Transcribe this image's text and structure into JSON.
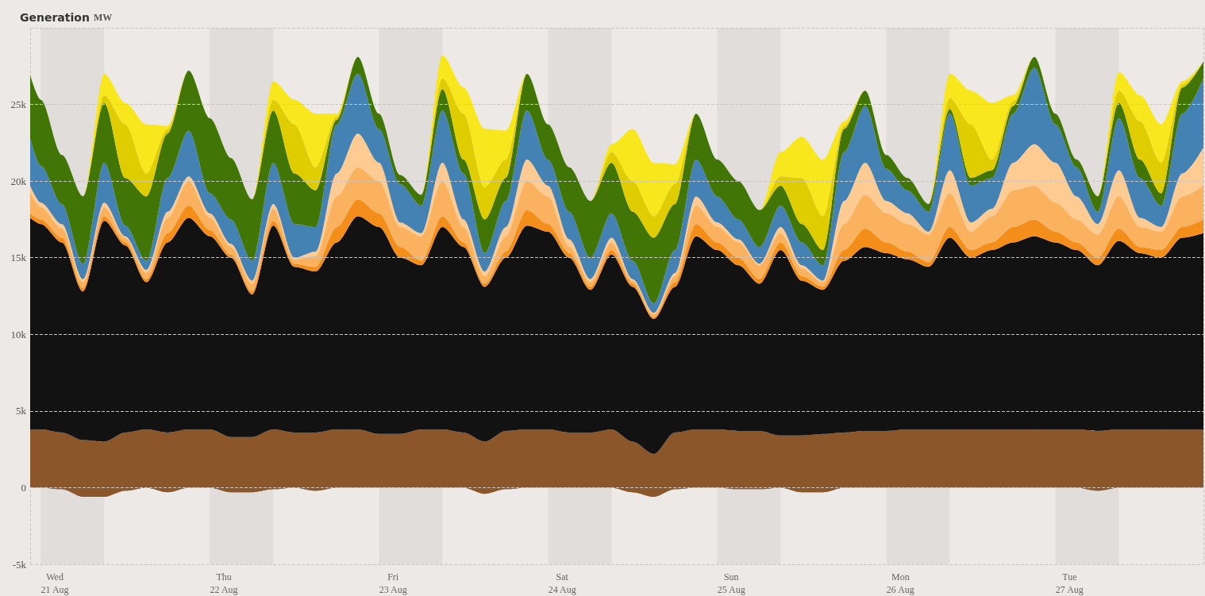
{
  "chart_data": {
    "type": "area",
    "stacked": true,
    "title": "Generation",
    "subtitle": "MW",
    "marker": "none",
    "grid": true,
    "xlim": [
      "--08-20T20:30",
      "--08-27T19:00"
    ],
    "xticks": [
      {
        "value": "--08-21",
        "label": "Wed\n21 Aug"
      },
      {
        "value": "--08-22",
        "label": "Thu\n22 Aug"
      },
      {
        "value": "--08-23",
        "label": "Fri\n23 Aug"
      },
      {
        "value": "--08-24",
        "label": "Sat\n24 Aug"
      },
      {
        "value": "--08-25",
        "label": "Sun\n25 Aug"
      },
      {
        "value": "--08-26",
        "label": "Mon\n26 Aug"
      },
      {
        "value": "--08-27",
        "label": "Tue\n27 Aug"
      }
    ],
    "ylim": [
      -5000,
      30000
    ],
    "yticks": [
      {
        "value": -5000,
        "label": "-5k"
      },
      {
        "value": 0,
        "label": "0"
      },
      {
        "value": 5000,
        "label": "5k"
      },
      {
        "value": 10000,
        "label": "10k"
      },
      {
        "value": 15000,
        "label": "15k"
      },
      {
        "value": 20000,
        "label": "20k"
      },
      {
        "value": 25000,
        "label": "25k"
      },
      {
        "value": 30000,
        "label": null
      }
    ],
    "bands": [
      {
        "axis": "x",
        "from": "--08-20T22:00",
        "to": "--08-21T07:00",
        "color": "#e0dddb"
      },
      {
        "axis": "x",
        "from": "--08-21T22:00",
        "to": "--08-22T07:00",
        "color": "#e0dddb"
      },
      {
        "axis": "x",
        "from": "--08-22T22:00",
        "to": "--08-23T07:00",
        "color": "#e0dddb"
      },
      {
        "axis": "x",
        "from": "--08-23T22:00",
        "to": "--08-24T07:00",
        "color": "#e0dddb"
      },
      {
        "axis": "x",
        "from": "--08-24T22:00",
        "to": "--08-25T07:00",
        "color": "#e0dddb"
      },
      {
        "axis": "x",
        "from": "--08-25T22:00",
        "to": "--08-26T07:00",
        "color": "#e0dddb"
      },
      {
        "axis": "x",
        "from": "--08-26T22:00",
        "to": "--08-27T07:00",
        "color": "#e0dddb"
      }
    ],
    "x": [
      "--08-20T20:30",
      "--08-20T22:00",
      "--08-21T01:00",
      "--08-21T04:00",
      "--08-21T07:00",
      "--08-21T10:00",
      "--08-21T13:00",
      "--08-21T16:00",
      "--08-21T19:00",
      "--08-21T22:00",
      "--08-22T01:00",
      "--08-22T04:00",
      "--08-22T07:00",
      "--08-22T10:00",
      "--08-22T13:00",
      "--08-22T16:00",
      "--08-22T19:00",
      "--08-22T22:00",
      "--08-23T01:00",
      "--08-23T04:00",
      "--08-23T07:00",
      "--08-23T10:00",
      "--08-23T13:00",
      "--08-23T16:00",
      "--08-23T19:00",
      "--08-23T22:00",
      "--08-24T01:00",
      "--08-24T04:00",
      "--08-24T07:00",
      "--08-24T10:00",
      "--08-24T13:00",
      "--08-24T16:00",
      "--08-24T19:00",
      "--08-24T22:00",
      "--08-25T01:00",
      "--08-25T04:00",
      "--08-25T07:00",
      "--08-25T10:00",
      "--08-25T13:00",
      "--08-25T16:00",
      "--08-25T19:00",
      "--08-25T22:00",
      "--08-26T01:00",
      "--08-26T04:00",
      "--08-26T07:00",
      "--08-26T10:00",
      "--08-26T13:00",
      "--08-26T16:00",
      "--08-26T19:00",
      "--08-26T22:00",
      "--08-27T01:00",
      "--08-27T04:00",
      "--08-27T07:00",
      "--08-27T10:00",
      "--08-27T13:00",
      "--08-27T16:00",
      "--08-27T19:00"
    ],
    "series": [
      {
        "color": "#8b572a",
        "values": [
          0,
          0,
          -100,
          -600,
          -600,
          -200,
          0,
          -300,
          0,
          0,
          -300,
          -300,
          -100,
          0,
          -200,
          0,
          0,
          0,
          0,
          0,
          0,
          0,
          -400,
          -100,
          0,
          0,
          0,
          0,
          0,
          -300,
          -600,
          -100,
          0,
          0,
          -100,
          -100,
          0,
          -300,
          -300,
          0,
          0,
          0,
          0,
          0,
          0,
          0,
          0,
          0,
          0,
          0,
          0,
          -200,
          0,
          0,
          0,
          0,
          0
        ]
      },
      {
        "color": "#8b572a",
        "values": [
          3800,
          3800,
          3700,
          3700,
          3600,
          3800,
          3800,
          3900,
          3800,
          3800,
          3600,
          3600,
          3900,
          3600,
          3800,
          3800,
          3800,
          3500,
          3500,
          3800,
          3800,
          3600,
          3400,
          3800,
          3800,
          3800,
          3600,
          3600,
          3800,
          3300,
          2800,
          3700,
          3800,
          3800,
          3800,
          3800,
          3400,
          3700,
          3800,
          3600,
          3700,
          3700,
          3800,
          3800,
          3800,
          3800,
          3800,
          3800,
          3800,
          3800,
          3800,
          3900,
          3800,
          3800,
          3800,
          3800,
          3800
        ]
      },
      {
        "color": "#121212",
        "values": [
          13800,
          13400,
          12400,
          9700,
          14400,
          12200,
          9600,
          12400,
          13800,
          12600,
          11700,
          9300,
          13300,
          10800,
          10500,
          12200,
          13900,
          13500,
          11500,
          10700,
          13200,
          12100,
          10100,
          11300,
          13300,
          12900,
          11400,
          9300,
          11400,
          10100,
          8800,
          9500,
          12600,
          11700,
          10800,
          9600,
          12100,
          10100,
          9400,
          11200,
          12000,
          11600,
          11100,
          10600,
          12500,
          11200,
          11700,
          12200,
          12600,
          12200,
          11700,
          10800,
          12300,
          11500,
          11200,
          12500,
          12800
        ]
      },
      {
        "color": "#f48e1b",
        "values": [
          300,
          300,
          300,
          200,
          300,
          200,
          200,
          600,
          800,
          400,
          200,
          200,
          300,
          200,
          300,
          1000,
          1100,
          900,
          700,
          300,
          700,
          300,
          200,
          400,
          1000,
          500,
          300,
          200,
          300,
          200,
          100,
          300,
          800,
          500,
          500,
          300,
          500,
          300,
          200,
          700,
          1200,
          700,
          500,
          300,
          700,
          500,
          500,
          1000,
          1100,
          700,
          500,
          500,
          800,
          400,
          500,
          700,
          900
        ]
      },
      {
        "color": "#fbb25e",
        "values": [
          1400,
          800,
          600,
          400,
          600,
          300,
          400,
          1000,
          1600,
          800,
          500,
          500,
          800,
          300,
          700,
          2000,
          2100,
          2100,
          1300,
          1600,
          2300,
          1000,
          500,
          1000,
          1900,
          1800,
          400,
          300,
          500,
          200,
          200,
          400,
          1200,
          1000,
          1000,
          900,
          600,
          500,
          300,
          1700,
          2200,
          1900,
          1800,
          1800,
          2200,
          1200,
          1700,
          2400,
          2200,
          1900,
          1500,
          1500,
          2100,
          1300,
          1200,
          2000,
          2200
        ]
      },
      {
        "color": "#fecb92",
        "values": [
          400,
          300,
          300,
          200,
          300,
          100,
          200,
          400,
          300,
          300,
          200,
          200,
          300,
          100,
          300,
          1500,
          2200,
          1200,
          300,
          200,
          1200,
          500,
          300,
          600,
          1400,
          700,
          500,
          200,
          300,
          100,
          100,
          200,
          600,
          300,
          200,
          100,
          400,
          200,
          100,
          1500,
          2100,
          800,
          700,
          200,
          1500,
          600,
          500,
          1800,
          2700,
          2600,
          1500,
          700,
          1700,
          600,
          300,
          1500,
          2500
        ]
      },
      {
        "color": "#4582b4",
        "values": [
          3100,
          2400,
          1300,
          1000,
          2600,
          700,
          600,
          2200,
          3000,
          1300,
          1600,
          1300,
          2700,
          2200,
          1600,
          3200,
          3900,
          2200,
          2500,
          1800,
          3400,
          3000,
          1200,
          1700,
          3200,
          1700,
          1800,
          1400,
          1600,
          1200,
          600,
          1500,
          2400,
          1700,
          1300,
          1100,
          1400,
          1500,
          1000,
          3200,
          3700,
          2100,
          1500,
          1300,
          3700,
          2400,
          2000,
          3200,
          5000,
          2500,
          1900,
          800,
          3400,
          2600,
          1400,
          3900,
          4500
        ]
      },
      {
        "color": "#417505",
        "values": [
          4100,
          4300,
          3200,
          4400,
          3900,
          3100,
          4200,
          2900,
          3900,
          4900,
          4000,
          4000,
          3400,
          3300,
          2400,
          300,
          1100,
          1000,
          600,
          700,
          1400,
          900,
          2200,
          1500,
          2400,
          2300,
          2900,
          3700,
          3300,
          3200,
          4300,
          3000,
          3000,
          2400,
          2500,
          2400,
          1300,
          1200,
          1000,
          1500,
          1000,
          900,
          800,
          500,
          300,
          500,
          500,
          500,
          700,
          700,
          500,
          1000,
          1000,
          1200,
          800,
          1700,
          1100
        ]
      },
      {
        "color": "#dfcd02",
        "values": [
          0,
          0,
          0,
          0,
          500,
          3500,
          1500,
          300,
          0,
          0,
          0,
          0,
          700,
          3200,
          1500,
          200,
          0,
          0,
          0,
          0,
          700,
          3000,
          2100,
          1200,
          0,
          0,
          0,
          0,
          700,
          2000,
          1400,
          1300,
          0,
          0,
          0,
          0,
          600,
          3000,
          2200,
          200,
          0,
          0,
          0,
          0,
          700,
          3500,
          700,
          300,
          0,
          0,
          0,
          0,
          800,
          2500,
          2000,
          200,
          0
        ]
      },
      {
        "color": "#f8e71c",
        "values": [
          0,
          0,
          0,
          0,
          1400,
          1400,
          3200,
          200,
          0,
          0,
          0,
          0,
          1200,
          1600,
          3500,
          200,
          0,
          0,
          0,
          0,
          1500,
          1700,
          3800,
          1900,
          0,
          0,
          0,
          0,
          500,
          3400,
          3500,
          1300,
          0,
          0,
          0,
          0,
          1600,
          2700,
          3700,
          300,
          0,
          0,
          0,
          0,
          1600,
          2200,
          3700,
          400,
          0,
          0,
          0,
          0,
          1200,
          1700,
          2500,
          200,
          0
        ]
      }
    ]
  }
}
